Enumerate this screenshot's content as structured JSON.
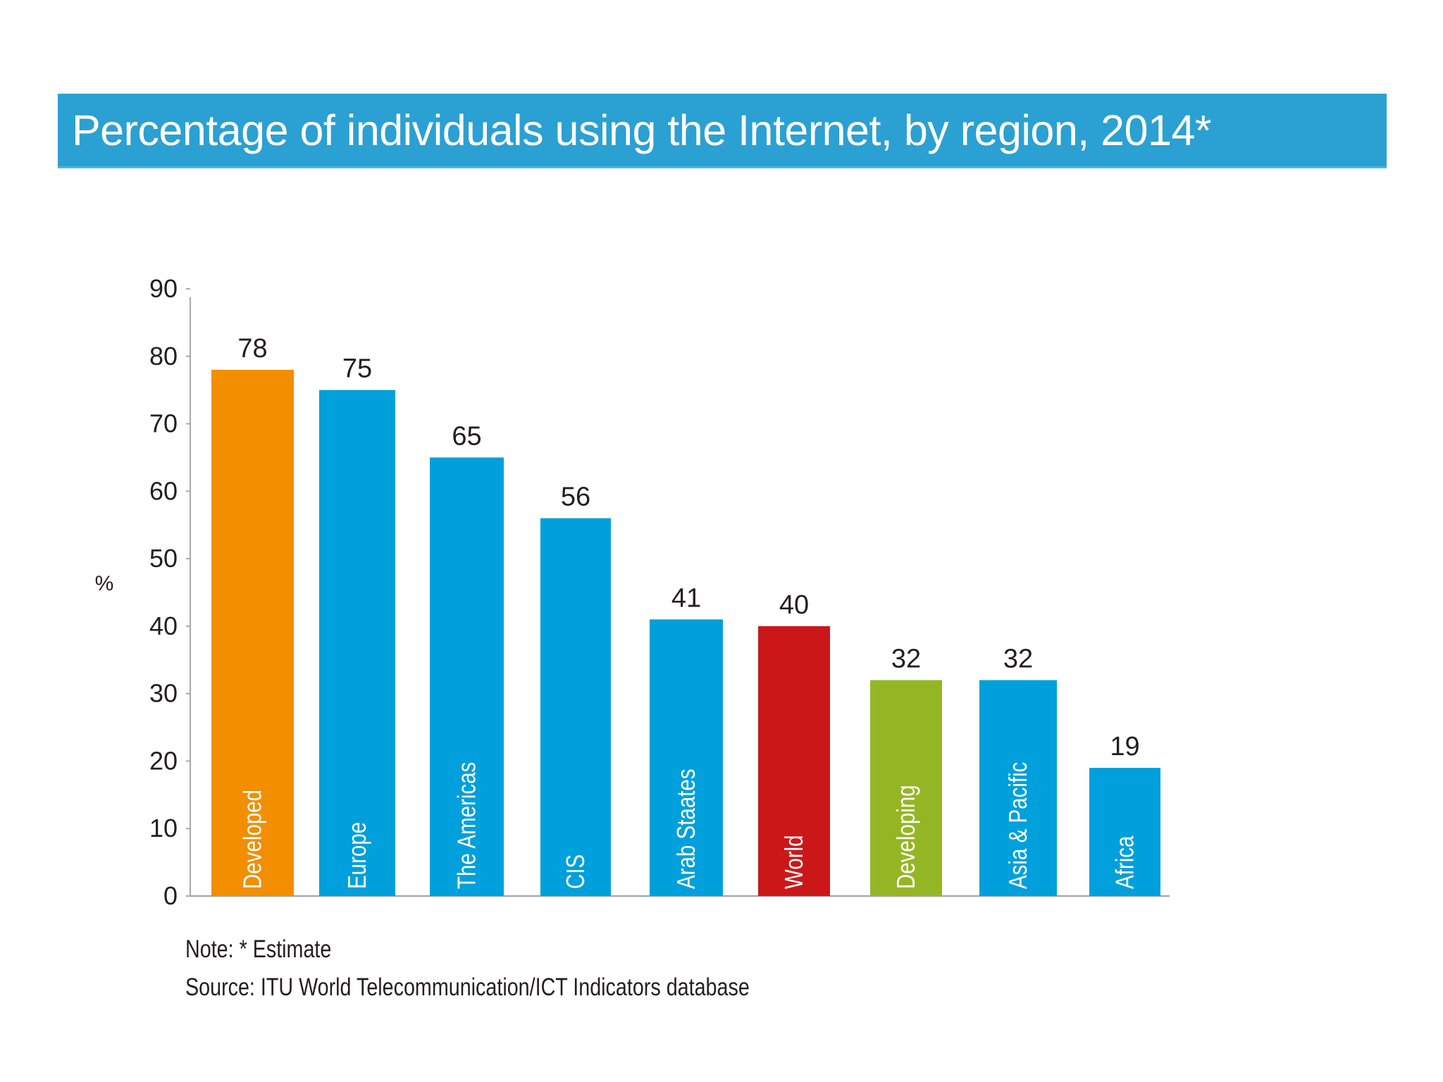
{
  "title": "Percentage of individuals using the Internet, by region, 2014*",
  "note": "Note: * Estimate",
  "source": "Source: ITU World Telecommunication/ICT Indicators database",
  "chart_data": {
    "type": "bar",
    "title": "Percentage of individuals using the Internet, by region, 2014*",
    "xlabel": "",
    "ylabel": "%",
    "ylim": [
      0,
      90
    ],
    "yticks": [
      0,
      10,
      20,
      30,
      40,
      50,
      60,
      70,
      80,
      90
    ],
    "grid": false,
    "categories": [
      "Developed",
      "Europe",
      "The Americas",
      "CIS",
      "Arab Staates",
      "World",
      "Developing",
      "Asia & Pacific",
      "Africa"
    ],
    "values": [
      78,
      75,
      65,
      56,
      41,
      40,
      32,
      32,
      19
    ],
    "colors": [
      "#f28e00",
      "#00a0dc",
      "#00a0dc",
      "#00a0dc",
      "#00a0dc",
      "#cc1719",
      "#95b624",
      "#00a0dc",
      "#00a0dc"
    ],
    "axis_color": "#a7a9ac",
    "text_color": "#231f20"
  }
}
